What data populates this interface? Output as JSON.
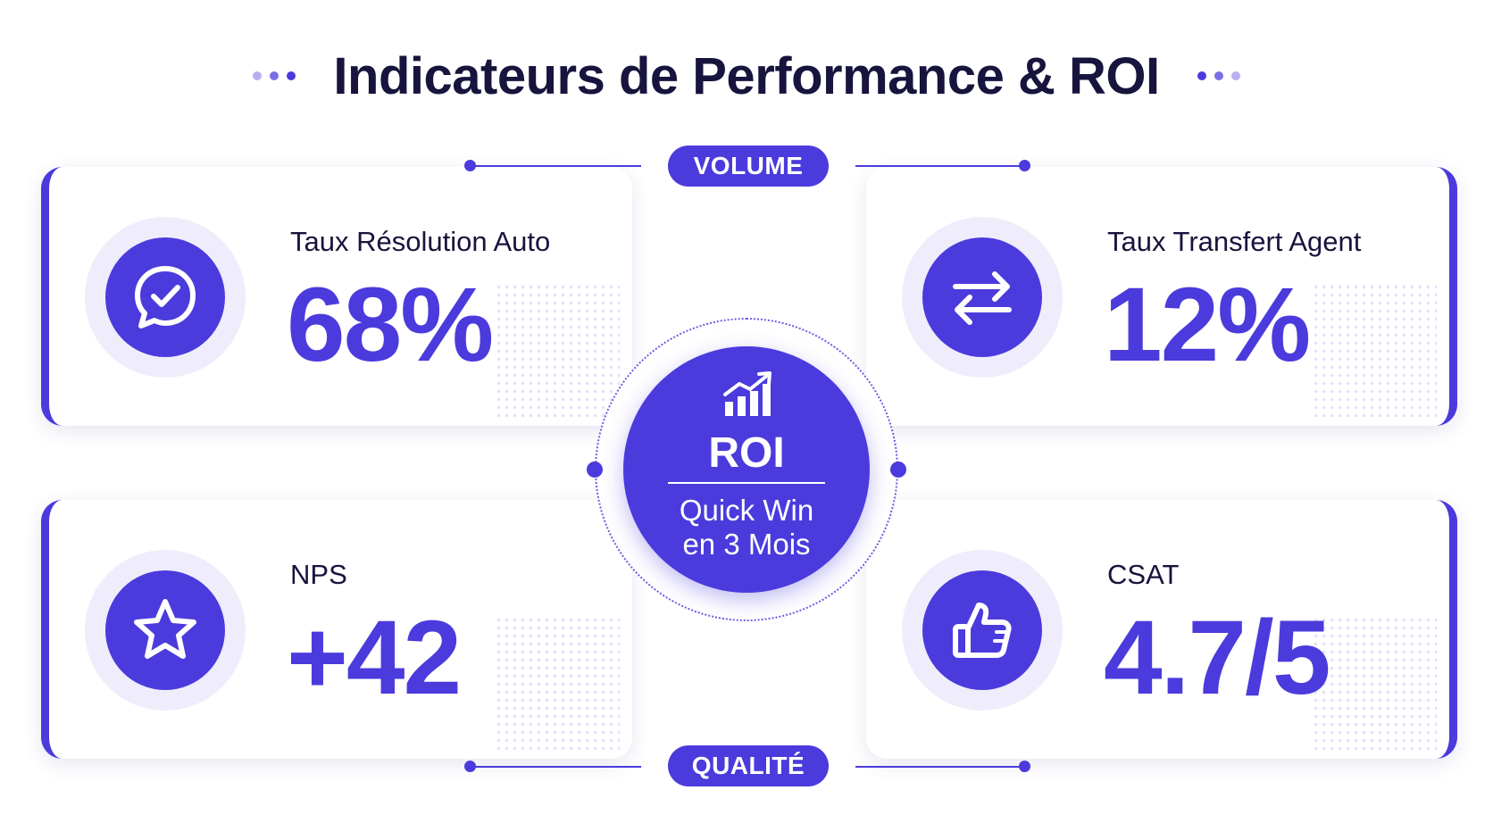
{
  "header": {
    "title": "Indicateurs de Performance & ROI"
  },
  "tags": {
    "top": "VOLUME",
    "bottom": "QUALITÉ"
  },
  "cards": [
    {
      "label": "Taux Résolution Auto",
      "value": "68%",
      "icon": "chat-check-icon"
    },
    {
      "label": "Taux Transfert Agent",
      "value": "12%",
      "icon": "transfer-arrows-icon"
    },
    {
      "label": "NPS",
      "value": "+42",
      "icon": "star-icon"
    },
    {
      "label": "CSAT",
      "value": "4.7/5",
      "icon": "thumbs-up-icon"
    }
  ],
  "roi": {
    "title": "ROI",
    "subtitle_line1": "Quick Win",
    "subtitle_line2": "en 3 Mois",
    "icon": "growth-chart-icon"
  },
  "colors": {
    "accent": "#4b3bdd",
    "title_text": "#17143d",
    "icon_halo": "#efedfb",
    "dot_light": "#b7b0f0"
  }
}
